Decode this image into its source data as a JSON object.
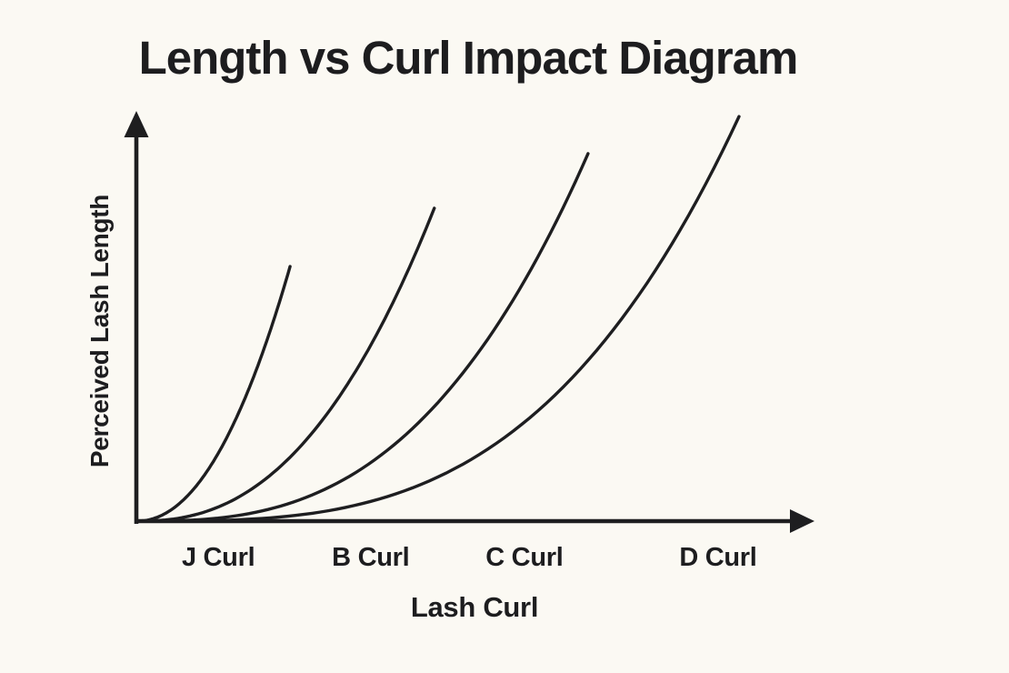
{
  "chart_data": {
    "type": "line",
    "title": "Length vs Curl Impact Diagram",
    "xlabel": "Lash Curl",
    "ylabel": "Perceived Lash Length",
    "x_tick_labels": [
      "J Curl",
      "B Curl",
      "C Curl",
      "D Curl"
    ],
    "y_tick_labels": [],
    "grid": false,
    "legend": "none",
    "axis_style": "arrowed axes, no numeric scale (qualitative diagram)",
    "series": [
      {
        "name": "J Curl",
        "x_reach": 0.227,
        "y_reach": 0.625,
        "curvature_exponent": 2.1,
        "shape": "accelerating upward curve from origin"
      },
      {
        "name": "B Curl",
        "x_reach": 0.44,
        "y_reach": 0.768,
        "curvature_exponent": 2.4,
        "shape": "accelerating upward curve from origin"
      },
      {
        "name": "C Curl",
        "x_reach": 0.667,
        "y_reach": 0.902,
        "curvature_exponent": 2.8,
        "shape": "accelerating upward curve from origin"
      },
      {
        "name": "D Curl",
        "x_reach": 0.89,
        "y_reach": 0.993,
        "curvature_exponent": 3.2,
        "shape": "accelerating upward curve from origin"
      }
    ],
    "x_tick_positions": [
      0.121,
      0.346,
      0.573,
      0.859
    ],
    "xlim": [
      0,
      1
    ],
    "ylim": [
      0,
      1
    ],
    "colors": {
      "ink": "#1e1e20",
      "background": "#fbf9f3"
    }
  }
}
